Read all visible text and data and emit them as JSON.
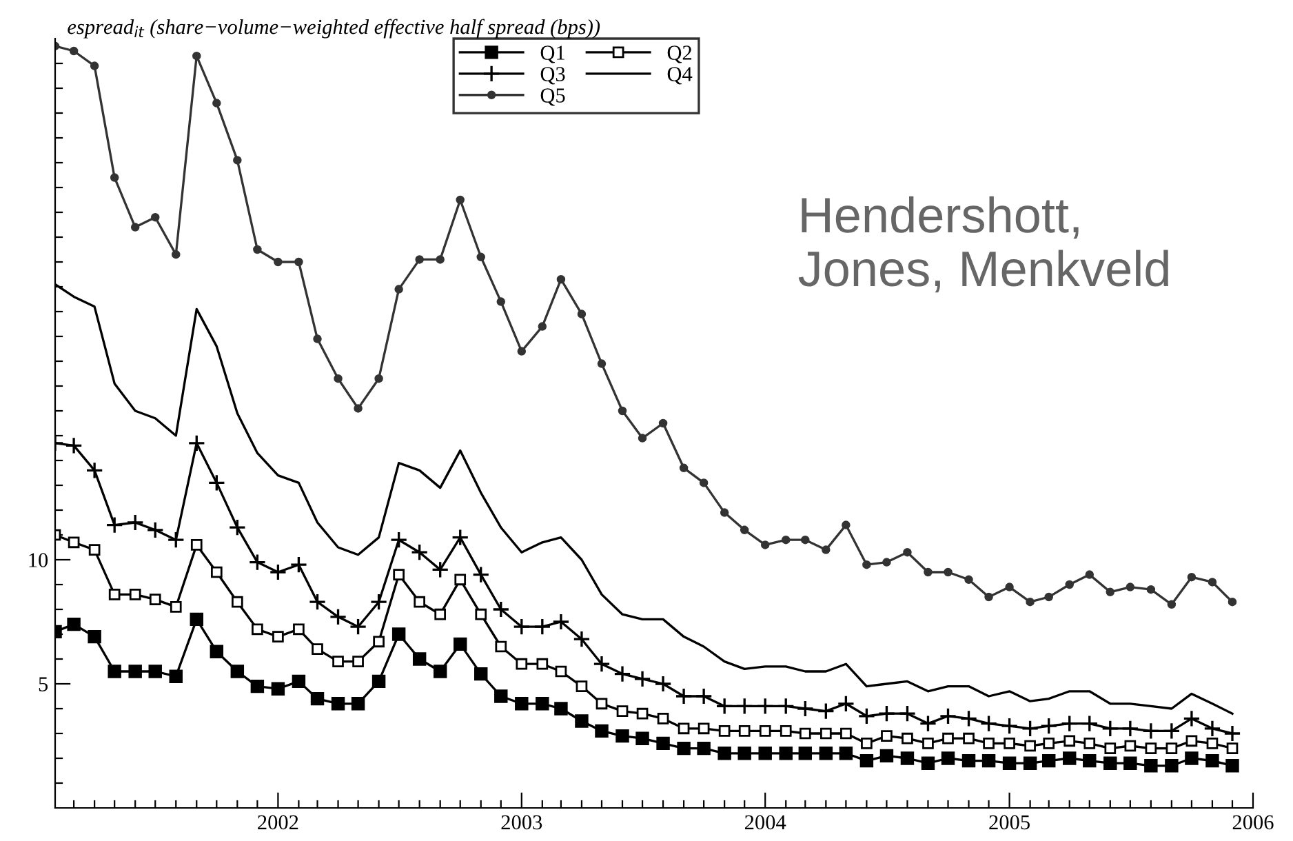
{
  "chart_data": {
    "type": "line",
    "ylabel": "espread$_{it}$ (share−volume−weighted effective half spread (bps))",
    "annotations": [
      "Hendershott,\nJones, Menkveld"
    ],
    "x": [
      "2001-02",
      "2001-03",
      "2001-04",
      "2001-05",
      "2001-06",
      "2001-07",
      "2001-08",
      "2001-09",
      "2001-10",
      "2001-11",
      "2001-12",
      "2002-01",
      "2002-02",
      "2002-03",
      "2002-04",
      "2002-05",
      "2002-06",
      "2002-07",
      "2002-08",
      "2002-09",
      "2002-10",
      "2002-11",
      "2002-12",
      "2003-01",
      "2003-02",
      "2003-03",
      "2003-04",
      "2003-05",
      "2003-06",
      "2003-07",
      "2003-08",
      "2003-09",
      "2003-10",
      "2003-11",
      "2003-12",
      "2004-01",
      "2004-02",
      "2004-03",
      "2004-04",
      "2004-05",
      "2004-06",
      "2004-07",
      "2004-08",
      "2004-09",
      "2004-10",
      "2004-11",
      "2004-12",
      "2005-01",
      "2005-02",
      "2005-03",
      "2005-04",
      "2005-05",
      "2005-06",
      "2005-07",
      "2005-08",
      "2005-09",
      "2005-10",
      "2005-11",
      "2005-12"
    ],
    "series": [
      {
        "name": "Q1",
        "color": "#000000",
        "marker": "square",
        "values": [
          7.1,
          7.4,
          6.9,
          5.5,
          5.5,
          5.5,
          5.3,
          7.6,
          6.3,
          5.5,
          4.9,
          4.8,
          5.1,
          4.4,
          4.2,
          4.2,
          5.1,
          7.0,
          6.0,
          5.5,
          6.6,
          5.4,
          4.5,
          4.2,
          4.2,
          4.0,
          3.5,
          3.1,
          2.9,
          2.8,
          2.6,
          2.4,
          2.4,
          2.2,
          2.2,
          2.2,
          2.2,
          2.2,
          2.2,
          2.2,
          1.9,
          2.1,
          2.0,
          1.8,
          2.0,
          1.9,
          1.9,
          1.8,
          1.8,
          1.9,
          2.0,
          1.9,
          1.8,
          1.8,
          1.7,
          1.7,
          2.0,
          1.9,
          1.7
        ]
      },
      {
        "name": "Q2",
        "color": "#000000",
        "marker": "square_open",
        "values": [
          11.0,
          10.7,
          10.4,
          8.6,
          8.6,
          8.4,
          8.1,
          10.6,
          9.5,
          8.3,
          7.2,
          6.9,
          7.2,
          6.4,
          5.9,
          5.9,
          6.7,
          9.4,
          8.3,
          7.8,
          9.2,
          7.8,
          6.5,
          5.8,
          5.8,
          5.5,
          4.9,
          4.2,
          3.9,
          3.8,
          3.6,
          3.2,
          3.2,
          3.1,
          3.1,
          3.1,
          3.1,
          3.0,
          3.0,
          3.0,
          2.6,
          2.9,
          2.8,
          2.6,
          2.8,
          2.8,
          2.6,
          2.6,
          2.5,
          2.6,
          2.7,
          2.6,
          2.4,
          2.5,
          2.4,
          2.4,
          2.7,
          2.6,
          2.4
        ]
      },
      {
        "name": "Q3",
        "color": "#000000",
        "marker": "cross",
        "values": [
          14.7,
          14.6,
          13.6,
          11.4,
          11.5,
          11.2,
          10.8,
          14.7,
          13.1,
          11.3,
          9.9,
          9.5,
          9.8,
          8.3,
          7.7,
          7.3,
          8.3,
          10.8,
          10.3,
          9.6,
          10.9,
          9.4,
          8.0,
          7.3,
          7.3,
          7.5,
          6.8,
          5.8,
          5.4,
          5.2,
          5.0,
          4.5,
          4.5,
          4.1,
          4.1,
          4.1,
          4.1,
          4.0,
          3.9,
          4.2,
          3.7,
          3.8,
          3.8,
          3.4,
          3.7,
          3.6,
          3.4,
          3.3,
          3.2,
          3.3,
          3.4,
          3.4,
          3.2,
          3.2,
          3.1,
          3.1,
          3.6,
          3.2,
          3.0
        ]
      },
      {
        "name": "Q4",
        "color": "#000000",
        "marker": "none",
        "values": [
          21.1,
          20.6,
          20.2,
          17.1,
          16.0,
          15.7,
          15.0,
          20.1,
          18.6,
          15.9,
          14.3,
          13.4,
          13.1,
          11.5,
          10.5,
          10.2,
          10.9,
          13.9,
          13.6,
          12.9,
          14.4,
          12.7,
          11.3,
          10.3,
          10.7,
          10.9,
          10.0,
          8.6,
          7.8,
          7.6,
          7.6,
          6.9,
          6.5,
          5.9,
          5.6,
          5.7,
          5.7,
          5.5,
          5.5,
          5.8,
          4.9,
          5.0,
          5.1,
          4.7,
          4.9,
          4.9,
          4.5,
          4.7,
          4.3,
          4.4,
          4.7,
          4.7,
          4.2,
          4.2,
          4.1,
          4.0,
          4.6,
          4.2,
          3.8
        ]
      },
      {
        "name": "Q5",
        "color": "#333333",
        "marker": "circle",
        "values": [
          30.7,
          30.5,
          29.9,
          25.4,
          23.4,
          23.8,
          22.3,
          30.3,
          28.4,
          26.1,
          22.5,
          22.0,
          22.0,
          18.9,
          17.3,
          16.1,
          17.3,
          20.9,
          22.1,
          22.1,
          24.5,
          22.2,
          20.4,
          18.4,
          19.4,
          21.3,
          19.9,
          17.9,
          16.0,
          14.9,
          15.5,
          13.7,
          13.1,
          11.9,
          11.2,
          10.6,
          10.8,
          10.8,
          10.4,
          11.4,
          9.8,
          9.9,
          10.3,
          9.5,
          9.5,
          9.2,
          8.5,
          8.9,
          8.3,
          8.5,
          9.0,
          9.4,
          8.7,
          8.9,
          8.8,
          8.2,
          9.3,
          9.1,
          8.3
        ]
      }
    ],
    "xlim": [
      "2001-02",
      "2006-01"
    ],
    "xticks": [
      {
        "value": "2001-03",
        "label": null
      },
      {
        "value": "2001-04",
        "label": null
      },
      {
        "value": "2001-05",
        "label": null
      },
      {
        "value": "2001-06",
        "label": null
      },
      {
        "value": "2001-07",
        "label": null
      },
      {
        "value": "2001-08",
        "label": null
      },
      {
        "value": "2001-09",
        "label": null
      },
      {
        "value": "2001-10",
        "label": null
      },
      {
        "value": "2001-11",
        "label": null
      },
      {
        "value": "2001-12",
        "label": null
      },
      {
        "value": "2002-01",
        "label": "2002"
      },
      {
        "value": "2002-02",
        "label": null
      },
      {
        "value": "2002-03",
        "label": null
      },
      {
        "value": "2002-04",
        "label": null
      },
      {
        "value": "2002-05",
        "label": null
      },
      {
        "value": "2002-06",
        "label": null
      },
      {
        "value": "2002-07",
        "label": null
      },
      {
        "value": "2002-08",
        "label": null
      },
      {
        "value": "2002-09",
        "label": null
      },
      {
        "value": "2002-10",
        "label": null
      },
      {
        "value": "2002-11",
        "label": null
      },
      {
        "value": "2002-12",
        "label": null
      },
      {
        "value": "2003-01",
        "label": "2003"
      },
      {
        "value": "2003-02",
        "label": null
      },
      {
        "value": "2003-03",
        "label": null
      },
      {
        "value": "2003-04",
        "label": null
      },
      {
        "value": "2003-05",
        "label": null
      },
      {
        "value": "2003-06",
        "label": null
      },
      {
        "value": "2003-07",
        "label": null
      },
      {
        "value": "2003-08",
        "label": null
      },
      {
        "value": "2003-09",
        "label": null
      },
      {
        "value": "2003-10",
        "label": null
      },
      {
        "value": "2003-11",
        "label": null
      },
      {
        "value": "2003-12",
        "label": null
      },
      {
        "value": "2004-01",
        "label": "2004"
      },
      {
        "value": "2004-02",
        "label": null
      },
      {
        "value": "2004-03",
        "label": null
      },
      {
        "value": "2004-04",
        "label": null
      },
      {
        "value": "2004-05",
        "label": null
      },
      {
        "value": "2004-06",
        "label": null
      },
      {
        "value": "2004-07",
        "label": null
      },
      {
        "value": "2004-08",
        "label": null
      },
      {
        "value": "2004-09",
        "label": null
      },
      {
        "value": "2004-10",
        "label": null
      },
      {
        "value": "2004-11",
        "label": null
      },
      {
        "value": "2004-12",
        "label": null
      },
      {
        "value": "2005-01",
        "label": "2005"
      },
      {
        "value": "2005-02",
        "label": null
      },
      {
        "value": "2005-03",
        "label": null
      },
      {
        "value": "2005-04",
        "label": null
      },
      {
        "value": "2005-05",
        "label": null
      },
      {
        "value": "2005-06",
        "label": null
      },
      {
        "value": "2005-07",
        "label": null
      },
      {
        "value": "2005-08",
        "label": null
      },
      {
        "value": "2005-09",
        "label": null
      },
      {
        "value": "2005-10",
        "label": null
      },
      {
        "value": "2005-11",
        "label": null
      },
      {
        "value": "2005-12",
        "label": null
      },
      {
        "value": "2006-01",
        "label": "2006"
      }
    ],
    "ylim": [
      0,
      31
    ],
    "yticks": [
      {
        "value": 1,
        "label": null
      },
      {
        "value": 2,
        "label": null
      },
      {
        "value": 3,
        "label": null
      },
      {
        "value": 4,
        "label": null
      },
      5,
      {
        "value": 6,
        "label": null
      },
      {
        "value": 7,
        "label": null
      },
      {
        "value": 8,
        "label": null
      },
      {
        "value": 9,
        "label": null
      },
      10,
      {
        "value": 11,
        "label": null
      },
      {
        "value": 12,
        "label": null
      },
      {
        "value": 13,
        "label": null
      },
      {
        "value": 14,
        "label": null
      },
      {
        "value": 15,
        "label": null
      },
      {
        "value": 16,
        "label": null
      },
      {
        "value": 17,
        "label": null
      },
      {
        "value": 18,
        "label": null
      },
      {
        "value": 19,
        "label": null
      },
      {
        "value": 20,
        "label": null
      },
      {
        "value": 21,
        "label": null
      },
      {
        "value": 22,
        "label": null
      },
      {
        "value": 23,
        "label": null
      },
      {
        "value": 24,
        "label": null
      },
      {
        "value": 25,
        "label": null
      },
      {
        "value": 26,
        "label": null
      },
      {
        "value": 27,
        "label": null
      },
      {
        "value": 28,
        "label": null
      },
      {
        "value": 29,
        "label": null
      },
      {
        "value": 30,
        "label": null
      }
    ],
    "legend": "top",
    "grid": false
  }
}
